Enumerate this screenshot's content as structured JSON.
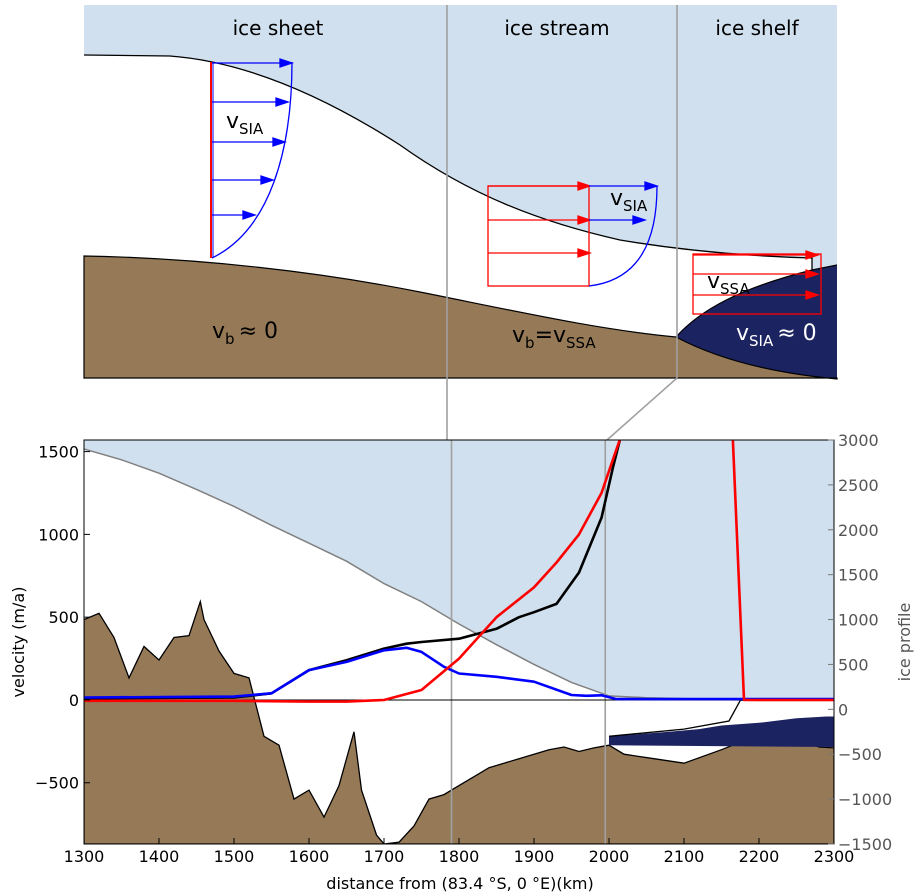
{
  "schematic": {
    "regions": [
      "ice sheet",
      "ice stream",
      "ice shelf"
    ],
    "sheet_velocity_label": "v",
    "sheet_velocity_sub": "SIA",
    "stream_velocity_label": "v",
    "stream_velocity_sub": "SIA",
    "shelf_velocity_label": "v",
    "shelf_velocity_sub": "SSA",
    "sheet_basal_label": "v",
    "sheet_basal_sub": "b",
    "sheet_basal_rest": "≈ 0",
    "stream_basal_label": "v",
    "stream_basal_sub": "b",
    "stream_basal_mid": "=v",
    "stream_basal_sub2": "SSA",
    "shelf_basal_label": "v",
    "shelf_basal_sub": "SIA",
    "shelf_basal_rest": "≈ 0"
  },
  "colors": {
    "ice": "#d0e0ee",
    "bed": "#967a58",
    "ocean": "#1c2361",
    "total": "#000000",
    "sia": "#0000ff",
    "ssa": "#ff0000",
    "profile": "#808080"
  },
  "chart_data": {
    "type": "line",
    "xlabel": "distance from (83.4 °S, 0 °E)(km)",
    "ylabel": "velocity (m/a)",
    "y2label": "ice profile",
    "xlim": [
      1300,
      2300
    ],
    "ylim": [
      -870,
      1570
    ],
    "y2lim": [
      -1500,
      3000
    ],
    "xticks": [
      "1300",
      "1400",
      "1500",
      "1600",
      "1700",
      "1800",
      "1900",
      "2000",
      "2100",
      "2200",
      "2300"
    ],
    "yticks": [
      "−500",
      "0",
      "500",
      "1000",
      "1500"
    ],
    "y2ticks": [
      "−1500",
      "−1000",
      "−500",
      "0",
      "500",
      "1000",
      "1500",
      "2000",
      "2500",
      "3000"
    ],
    "series": [
      {
        "key": "total",
        "x": [
          1300,
          1500,
          1550,
          1600,
          1650,
          1700,
          1730,
          1750,
          1800,
          1850,
          1880,
          1900,
          1930,
          1960,
          1990,
          2005,
          2015
        ],
        "y": [
          10,
          15,
          40,
          180,
          240,
          310,
          340,
          350,
          370,
          430,
          500,
          530,
          580,
          770,
          1100,
          1400,
          1580
        ]
      },
      {
        "key": "sia",
        "x": [
          1300,
          1500,
          1550,
          1600,
          1650,
          1700,
          1730,
          1750,
          1780,
          1800,
          1850,
          1900,
          1950,
          1970,
          1990,
          2010,
          2100,
          2300
        ],
        "y": [
          15,
          20,
          40,
          180,
          230,
          300,
          315,
          290,
          200,
          160,
          140,
          110,
          30,
          25,
          28,
          5,
          5,
          5
        ]
      },
      {
        "key": "ssa_grounded",
        "x": [
          1300,
          1500,
          1600,
          1650,
          1700,
          1750,
          1800,
          1850,
          1900,
          1930,
          1960,
          1990,
          2005,
          2015
        ],
        "y": [
          -5,
          -5,
          -10,
          -10,
          0,
          60,
          250,
          500,
          680,
          830,
          1000,
          1250,
          1450,
          1580
        ]
      },
      {
        "key": "ssa_shelf",
        "x": [
          2165,
          2180,
          2300
        ],
        "y": [
          1580,
          0,
          0
        ]
      }
    ],
    "profile": {
      "surface_x": [
        1300,
        1350,
        1400,
        1450,
        1500,
        1550,
        1600,
        1650,
        1700,
        1750,
        1800,
        1850,
        1900,
        1950,
        2000,
        2050,
        2100,
        2150,
        2200,
        2300
      ],
      "surface_y": [
        2900,
        2780,
        2630,
        2450,
        2260,
        2050,
        1850,
        1650,
        1400,
        1200,
        950,
        720,
        500,
        300,
        150,
        130,
        120,
        110,
        100,
        100
      ],
      "bed_x": [
        1300,
        1320,
        1340,
        1360,
        1380,
        1400,
        1420,
        1440,
        1455,
        1460,
        1480,
        1500,
        1520,
        1540,
        1560,
        1580,
        1600,
        1620,
        1640,
        1660,
        1670,
        1690,
        1700,
        1720,
        1740,
        1760,
        1780,
        1800,
        1820,
        1840,
        1860,
        1880,
        1900,
        1920,
        1940,
        1960,
        1980,
        2000,
        2020,
        2060,
        2100,
        2150,
        2180,
        2200,
        2250,
        2280,
        2300
      ],
      "bed_y": [
        1000,
        1070,
        800,
        350,
        700,
        550,
        800,
        820,
        1200,
        1000,
        650,
        400,
        350,
        -300,
        -400,
        -1000,
        -900,
        -1200,
        -850,
        -250,
        -900,
        -1400,
        -1500,
        -1480,
        -1300,
        -1000,
        -950,
        -850,
        -750,
        -650,
        -600,
        -550,
        -500,
        -450,
        -420,
        -470,
        -430,
        -400,
        -500,
        -550,
        -600,
        -450,
        -350,
        -380,
        -320,
        -420,
        -430
      ],
      "shelf_top_x": [
        2000,
        2100,
        2160,
        2175,
        2300
      ],
      "shelf_top_y": [
        -300,
        -220,
        -130,
        100,
        100
      ],
      "shelf_base_x": [
        2000,
        2080,
        2120,
        2150,
        2200,
        2250,
        2290,
        2300
      ],
      "shelf_base_y": [
        -300,
        -250,
        -220,
        -180,
        -150,
        -100,
        -80,
        -80
      ]
    },
    "region_boundaries_x": [
      1790,
      1995
    ]
  }
}
